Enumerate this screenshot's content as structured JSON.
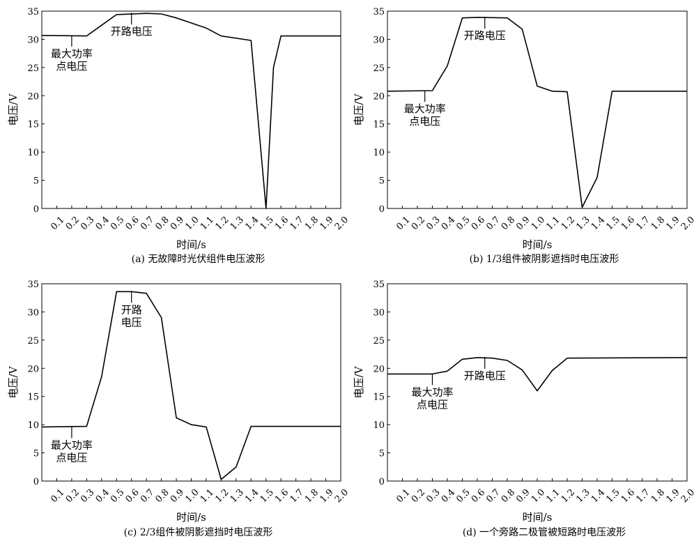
{
  "chart_data": [
    {
      "type": "line",
      "caption": "(a) 无故障时光伏组件电压波形",
      "xlabel": "时间/s",
      "ylabel": "电压/V",
      "xlim": [
        0,
        2.0
      ],
      "ylim": [
        0,
        35
      ],
      "xticks": [
        "0.1",
        "0.2",
        "0.3",
        "0.4",
        "0.5",
        "0.6",
        "0.7",
        "0.8",
        "0.9",
        "1.0",
        "1.1",
        "1.2",
        "1.3",
        "1.4",
        "1.5",
        "1.6",
        "1.7",
        "1.8",
        "1.9",
        "2.0"
      ],
      "yticks": [
        "0",
        "5",
        "10",
        "15",
        "20",
        "25",
        "30",
        "35"
      ],
      "grid": false,
      "series": [
        {
          "x": [
            0,
            0.3,
            0.4,
            0.5,
            0.7,
            0.8,
            0.9,
            1.1,
            1.2,
            1.4,
            1.5,
            1.55,
            1.6,
            2.0
          ],
          "y": [
            30.7,
            30.6,
            32.5,
            34.4,
            34.6,
            34.5,
            33.8,
            32.0,
            30.6,
            29.8,
            0,
            25,
            30.6,
            30.6
          ]
        }
      ],
      "annotations": [
        {
          "lines": [
            "开路电压"
          ],
          "x": 0.6,
          "y": 34.6,
          "dy": 2.2
        },
        {
          "lines": [
            "最大功率",
            "点电压"
          ],
          "x": 0.2,
          "y": 30.7,
          "dy": -3.5
        }
      ]
    },
    {
      "type": "line",
      "caption": "(b) 1/3组件被阴影遮挡时电压波形",
      "xlabel": "时间/s",
      "ylabel": "电压/V",
      "xlim": [
        0,
        2.0
      ],
      "ylim": [
        0,
        35
      ],
      "xticks": [
        "0.1",
        "0.2",
        "0.3",
        "0.4",
        "0.5",
        "0.6",
        "0.7",
        "0.8",
        "0.9",
        "1.0",
        "1.1",
        "1.2",
        "1.3",
        "1.4",
        "1.5",
        "1.6",
        "1.7",
        "1.8",
        "1.9",
        "2.0"
      ],
      "yticks": [
        "0",
        "5",
        "10",
        "15",
        "20",
        "25",
        "30",
        "35"
      ],
      "grid": false,
      "series": [
        {
          "x": [
            0,
            0.3,
            0.4,
            0.5,
            0.6,
            0.8,
            0.9,
            1.0,
            1.1,
            1.2,
            1.3,
            1.4,
            1.5,
            2.0
          ],
          "y": [
            20.8,
            20.9,
            25.3,
            33.8,
            33.9,
            33.8,
            31.8,
            21.7,
            20.8,
            20.7,
            0.2,
            5.5,
            20.8,
            20.8
          ]
        }
      ],
      "annotations": [
        {
          "lines": [
            "开路电压"
          ],
          "x": 0.65,
          "y": 33.9,
          "dy": 2.2
        },
        {
          "lines": [
            "最大功率",
            "点电压"
          ],
          "x": 0.25,
          "y": 20.9,
          "dy": -3.5
        }
      ]
    },
    {
      "type": "line",
      "caption": "(c) 2/3组件被阴影遮挡时电压波形",
      "xlabel": "时间/s",
      "ylabel": "电压/V",
      "xlim": [
        0,
        2.0
      ],
      "ylim": [
        0,
        35
      ],
      "xticks": [
        "0.1",
        "0.2",
        "0.3",
        "0.4",
        "0.5",
        "0.6",
        "0.7",
        "0.8",
        "0.9",
        "1.0",
        "1.1",
        "1.2",
        "1.3",
        "1.4",
        "1.5",
        "1.6",
        "1.7",
        "1.8",
        "1.9",
        "2.0"
      ],
      "yticks": [
        "0",
        "5",
        "10",
        "15",
        "20",
        "25",
        "30",
        "35"
      ],
      "grid": false,
      "series": [
        {
          "x": [
            0,
            0.3,
            0.4,
            0.5,
            0.6,
            0.7,
            0.8,
            0.9,
            1.0,
            1.1,
            1.2,
            1.3,
            1.4,
            2.0
          ],
          "y": [
            9.6,
            9.7,
            18.5,
            33.6,
            33.6,
            33.3,
            29.0,
            11.2,
            10.0,
            9.6,
            0.3,
            2.5,
            9.7,
            9.7
          ]
        }
      ],
      "annotations": [
        {
          "lines": [
            "开路",
            "电压"
          ],
          "x": 0.6,
          "y": 33.6,
          "dy": 2.2
        },
        {
          "lines": [
            "最大功率",
            "点电压"
          ],
          "x": 0.2,
          "y": 9.6,
          "dy": -3.5
        }
      ]
    },
    {
      "type": "line",
      "caption": "(d) 一个旁路二极管被短路时电压波形",
      "xlabel": "时间/s",
      "ylabel": "电压/V",
      "xlim": [
        0,
        2.0
      ],
      "ylim": [
        0,
        35
      ],
      "xticks": [
        "0.1",
        "0.2",
        "0.3",
        "0.4",
        "0.5",
        "0.6",
        "0.7",
        "0.8",
        "0.9",
        "1.0",
        "1.1",
        "1.2",
        "1.3",
        "1.4",
        "1.5",
        "1.6",
        "1.7",
        "1.8",
        "1.9",
        "2.0"
      ],
      "yticks": [
        "0",
        "5",
        "10",
        "15",
        "20",
        "25",
        "30",
        "35"
      ],
      "grid": false,
      "series": [
        {
          "x": [
            0,
            0.3,
            0.4,
            0.5,
            0.6,
            0.7,
            0.8,
            0.9,
            1.0,
            1.1,
            1.2,
            2.0
          ],
          "y": [
            19.0,
            19.0,
            19.5,
            21.6,
            21.9,
            21.8,
            21.4,
            19.7,
            16.0,
            19.6,
            21.8,
            21.9
          ]
        }
      ],
      "annotations": [
        {
          "lines": [
            "开路电压"
          ],
          "x": 0.65,
          "y": 21.9,
          "dy": 2.2
        },
        {
          "lines": [
            "最大功率",
            "点电压"
          ],
          "x": 0.3,
          "y": 19.0,
          "dy": -3.5
        }
      ]
    }
  ]
}
